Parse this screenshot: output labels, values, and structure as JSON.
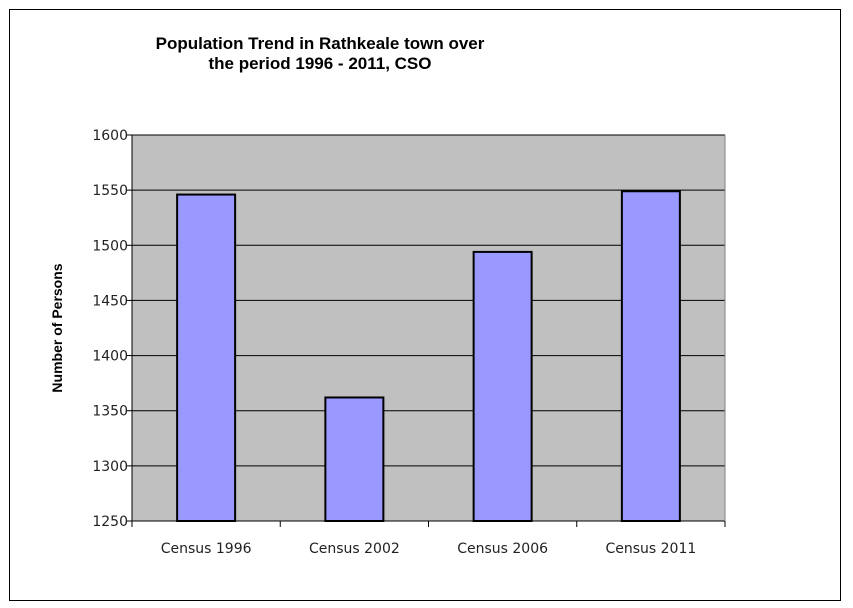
{
  "chart_data": {
    "type": "bar",
    "title": "Population Trend in Rathkeale town over the period 1996 - 2011, CSO",
    "title_lines": [
      "Population Trend in Rathkeale town over",
      "the period 1996 - 2011, CSO"
    ],
    "xlabel": "",
    "ylabel": "Number of Persons",
    "categories": [
      "Census 1996",
      "Census 2002",
      "Census 2006",
      "Census 2011"
    ],
    "values": [
      1546,
      1362,
      1494,
      1549
    ],
    "ylim": [
      1250,
      1600
    ],
    "yticks": [
      1250,
      1300,
      1350,
      1400,
      1450,
      1500,
      1550,
      1600
    ],
    "ytick_labels": [
      "1250",
      "1300",
      "1350",
      "1400",
      "1450",
      "1500",
      "1550",
      "1600"
    ],
    "grid": true,
    "legend": "none",
    "colors": {
      "bar_fill": "#9999ff",
      "bar_stroke": "#000000",
      "plot_background": "#c0c0c0",
      "gridline": "#000000"
    }
  }
}
